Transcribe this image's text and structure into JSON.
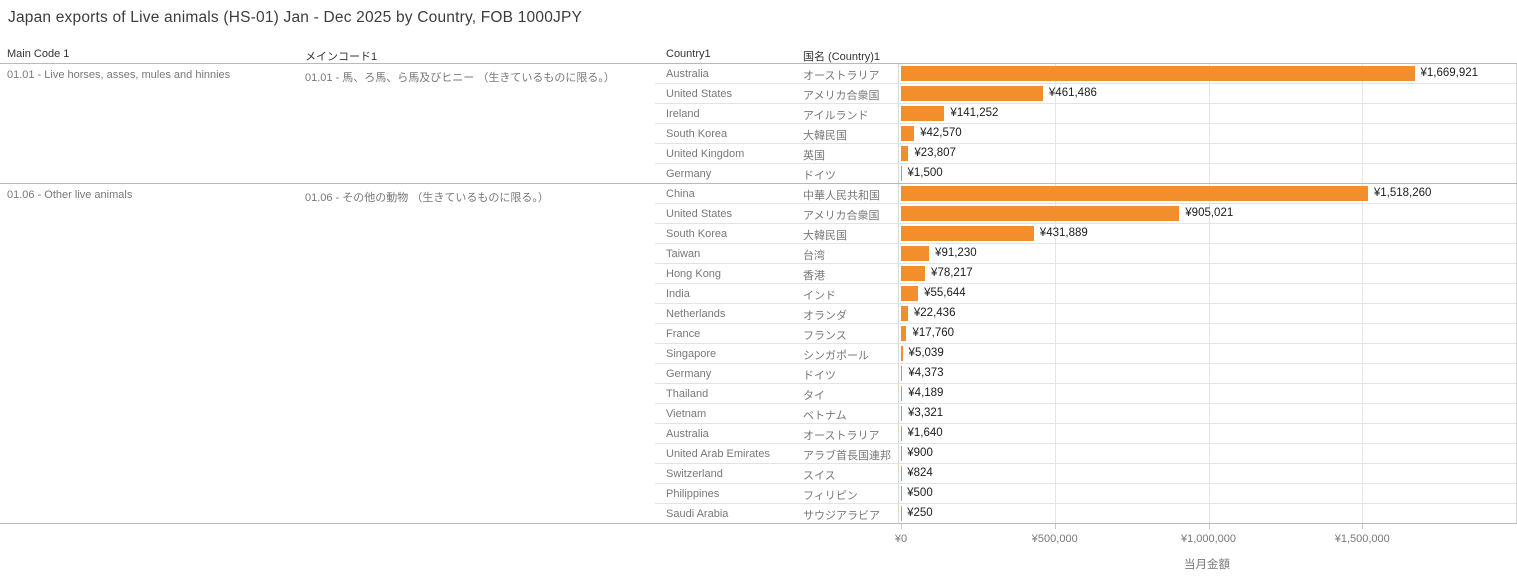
{
  "title": "Japan exports of Live animals (HS-01) Jan - Dec 2025 by Country, FOB 1000JPY",
  "columns": {
    "main_code": "Main Code 1",
    "main_code_jp": "メインコード1",
    "country": "Country1",
    "country_jp": "国名 (Country)1"
  },
  "colors": {
    "bar": "#f28e2b",
    "label_gray": "#787878",
    "value_text": "#1c1c1c"
  },
  "chart_data": {
    "type": "bar",
    "orientation": "horizontal",
    "title": "Japan exports of Live animals (HS-01) Jan - Dec 2025 by Country, FOB 1000JPY",
    "xlabel": "当月金額",
    "value_unit": "FOB 1000JPY",
    "xlim": [
      0,
      2000000
    ],
    "grid": true,
    "xticks": [
      {
        "value": 0,
        "label": "¥0"
      },
      {
        "value": 500000,
        "label": "¥500,000"
      },
      {
        "value": 1000000,
        "label": "¥1,000,000"
      },
      {
        "value": 1500000,
        "label": "¥1,500,000"
      }
    ],
    "groups": [
      {
        "main_code": "01.01 - Live horses, asses, mules and hinnies",
        "main_code_jp": "01.01 - 馬、ろ馬、ら馬及びヒニー （生きているものに限る。）",
        "rows": [
          {
            "country": "Australia",
            "country_jp": "オーストラリア",
            "value": 1669921,
            "value_label": "¥1,669,921"
          },
          {
            "country": "United States",
            "country_jp": "アメリカ合衆国",
            "value": 461486,
            "value_label": "¥461,486"
          },
          {
            "country": "Ireland",
            "country_jp": "アイルランド",
            "value": 141252,
            "value_label": "¥141,252"
          },
          {
            "country": "South Korea",
            "country_jp": "大韓民国",
            "value": 42570,
            "value_label": "¥42,570"
          },
          {
            "country": "United Kingdom",
            "country_jp": "英国",
            "value": 23807,
            "value_label": "¥23,807"
          },
          {
            "country": "Germany",
            "country_jp": "ドイツ",
            "value": 1500,
            "value_label": "¥1,500"
          }
        ]
      },
      {
        "main_code": "01.06 - Other live animals",
        "main_code_jp": "01.06 - その他の動物 （生きているものに限る。）",
        "rows": [
          {
            "country": "China",
            "country_jp": "中華人民共和国",
            "value": 1518260,
            "value_label": "¥1,518,260"
          },
          {
            "country": "United States",
            "country_jp": "アメリカ合衆国",
            "value": 905021,
            "value_label": "¥905,021"
          },
          {
            "country": "South Korea",
            "country_jp": "大韓民国",
            "value": 431889,
            "value_label": "¥431,889"
          },
          {
            "country": "Taiwan",
            "country_jp": "台湾",
            "value": 91230,
            "value_label": "¥91,230"
          },
          {
            "country": "Hong Kong",
            "country_jp": "香港",
            "value": 78217,
            "value_label": "¥78,217"
          },
          {
            "country": "India",
            "country_jp": "インド",
            "value": 55644,
            "value_label": "¥55,644"
          },
          {
            "country": "Netherlands",
            "country_jp": "オランダ",
            "value": 22436,
            "value_label": "¥22,436"
          },
          {
            "country": "France",
            "country_jp": "フランス",
            "value": 17760,
            "value_label": "¥17,760"
          },
          {
            "country": "Singapore",
            "country_jp": "シンガポール",
            "value": 5039,
            "value_label": "¥5,039"
          },
          {
            "country": "Germany",
            "country_jp": "ドイツ",
            "value": 4373,
            "value_label": "¥4,373"
          },
          {
            "country": "Thailand",
            "country_jp": "タイ",
            "value": 4189,
            "value_label": "¥4,189"
          },
          {
            "country": "Vietnam",
            "country_jp": "ベトナム",
            "value": 3321,
            "value_label": "¥3,321"
          },
          {
            "country": "Australia",
            "country_jp": "オーストラリア",
            "value": 1640,
            "value_label": "¥1,640"
          },
          {
            "country": "United Arab Emirates",
            "country_jp": "アラブ首長国連邦",
            "value": 900,
            "value_label": "¥900"
          },
          {
            "country": "Switzerland",
            "country_jp": "スイス",
            "value": 824,
            "value_label": "¥824"
          },
          {
            "country": "Philippines",
            "country_jp": "フィリピン",
            "value": 500,
            "value_label": "¥500"
          },
          {
            "country": "Saudi Arabia",
            "country_jp": "サウジアラビア",
            "value": 250,
            "value_label": "¥250"
          }
        ]
      }
    ]
  }
}
